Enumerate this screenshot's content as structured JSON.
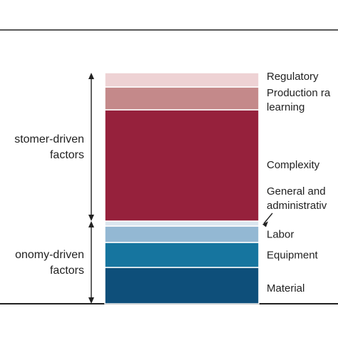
{
  "chart_data": {
    "type": "bar",
    "title": "",
    "stacked": true,
    "segments": [
      {
        "label": "Material",
        "value": 51,
        "color": "#0e4f7a"
      },
      {
        "label": "Equipment",
        "value": 35,
        "color": "#16759f"
      },
      {
        "label": "Labor",
        "value": 23,
        "color": "#93b8d3"
      },
      {
        "label": "General and administrative",
        "value": 7,
        "color": "#dbe6ef"
      },
      {
        "label": "Complexity",
        "value": 156,
        "color": "#96213c"
      },
      {
        "label": "Production rate, learning",
        "value": 32,
        "color": "#c4898a"
      },
      {
        "label": "Regulatory",
        "value": 20,
        "color": "#eed2d4"
      }
    ],
    "groups": [
      {
        "label_lines": [
          "stomer-driven",
          "factors"
        ],
        "from": 4,
        "to": 6
      },
      {
        "label_lines": [
          "onomy-driven",
          "factors"
        ],
        "from": 0,
        "to": 3
      }
    ],
    "display_labels": [
      {
        "segment": 6,
        "lines": [
          "Regulatory"
        ]
      },
      {
        "segment": 5,
        "lines": [
          "Production ra",
          "learning"
        ]
      },
      {
        "segment": 4,
        "lines": [
          "Complexity"
        ]
      },
      {
        "segment": 3,
        "lines": [
          "General and",
          "administrativ"
        ]
      },
      {
        "segment": 2,
        "lines": [
          "Labor"
        ]
      },
      {
        "segment": 1,
        "lines": [
          "Equipment"
        ]
      },
      {
        "segment": 0,
        "lines": [
          "Material"
        ]
      }
    ]
  }
}
